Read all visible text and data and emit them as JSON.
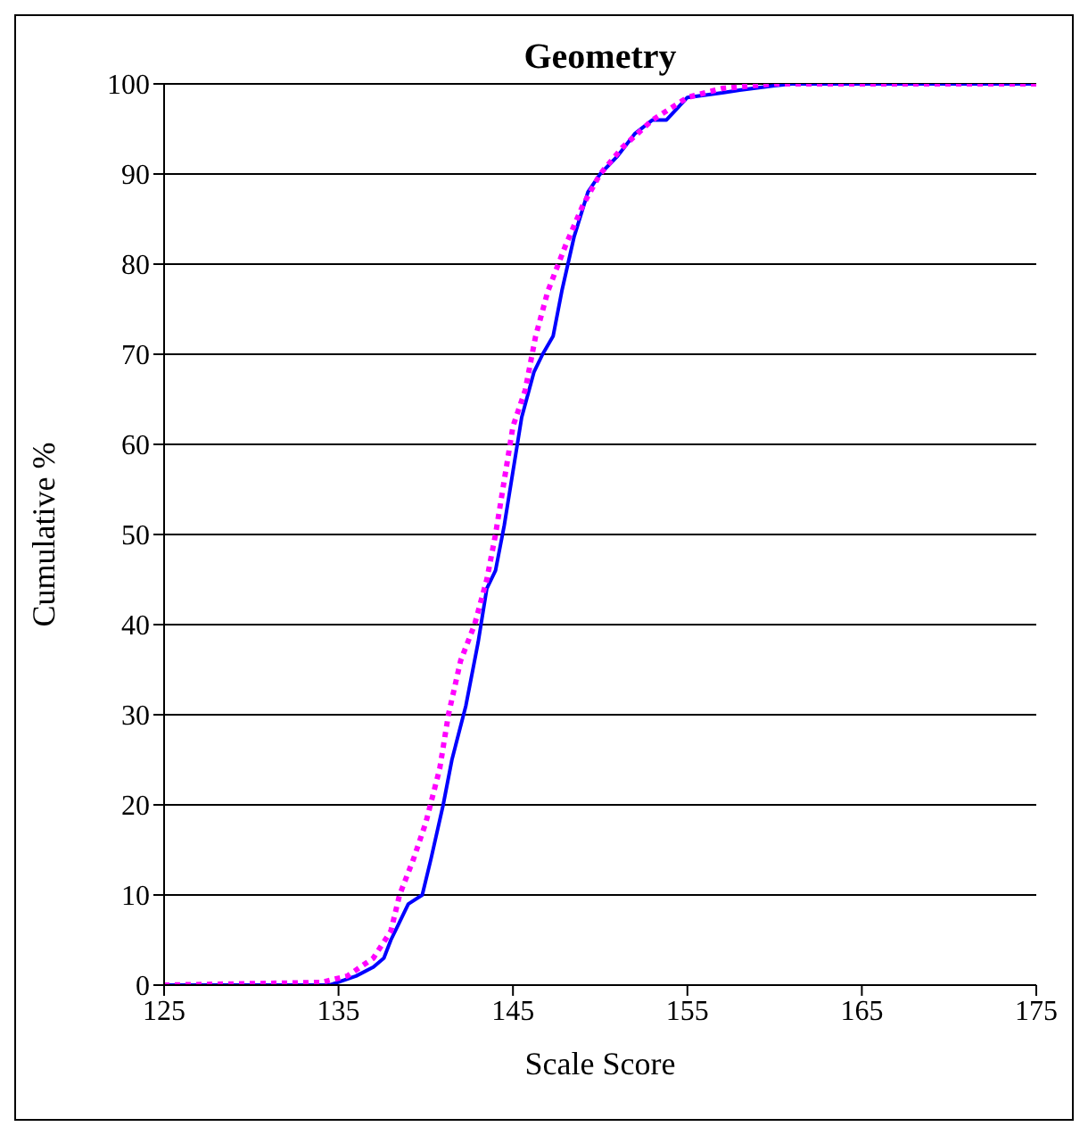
{
  "chart_data": {
    "type": "line",
    "title": "Geometry",
    "xlabel": "Scale Score",
    "ylabel": "Cumulative %",
    "xlim": [
      125,
      175
    ],
    "xticks": [
      125,
      135,
      145,
      155,
      165,
      175
    ],
    "ylim": [
      0,
      100
    ],
    "yticks": [
      0,
      10,
      20,
      30,
      40,
      50,
      60,
      70,
      80,
      90,
      100
    ],
    "grid": "y",
    "marker": "none",
    "series": [
      {
        "color": "#0000ff",
        "line_style": "solid",
        "x": [
          125,
          134.5,
          136,
          137,
          137.6,
          138,
          138.5,
          139,
          139.8,
          140.3,
          141,
          141.5,
          142.3,
          143,
          143.5,
          144,
          144.5,
          145,
          145.5,
          146.2,
          146.7,
          147.3,
          147.8,
          148.5,
          149.3,
          150,
          151,
          152,
          153,
          153.8,
          155,
          157,
          158,
          160,
          161,
          175
        ],
        "values": [
          0,
          0,
          1,
          2,
          3,
          5,
          7,
          9,
          10,
          14,
          20,
          25,
          31,
          38,
          44,
          46,
          51,
          57,
          63,
          68,
          70,
          72,
          77,
          83,
          88,
          90,
          92,
          94.5,
          96,
          96,
          98.5,
          99,
          99.3,
          99.8,
          100,
          100
        ]
      },
      {
        "color": "#ff00ff",
        "line_style": "dotted",
        "x": [
          125,
          134,
          135.5,
          137,
          138,
          138.5,
          139.3,
          140,
          140.8,
          141.3,
          142,
          142.8,
          143.5,
          144,
          144.5,
          145,
          145.7,
          146.3,
          147,
          148,
          149,
          150,
          151.3,
          153,
          155,
          157,
          160,
          175
        ],
        "values": [
          0,
          0.3,
          1,
          3,
          6,
          10,
          14,
          18,
          24,
          30,
          36,
          40,
          45,
          50,
          56,
          62,
          66,
          72,
          77,
          82,
          86.5,
          90,
          93,
          96,
          98.5,
          99.5,
          100,
          100
        ]
      }
    ]
  }
}
